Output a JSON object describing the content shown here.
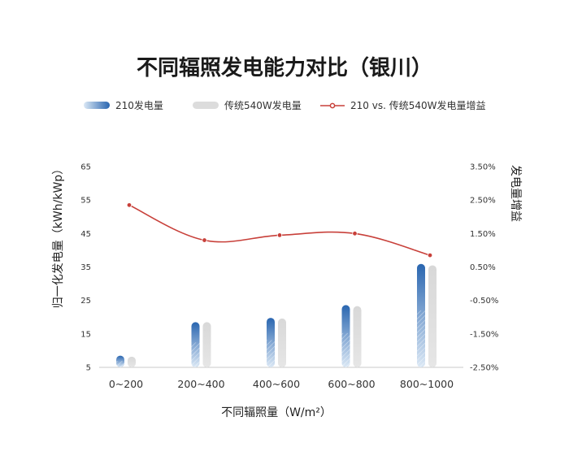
{
  "chart_data": {
    "type": "bar",
    "title": "不同辐照发电能力对比（银川）",
    "categories": [
      "0~200",
      "200~400",
      "400~600",
      "600~800",
      "800~1000"
    ],
    "series": [
      {
        "name": "210发电量",
        "type": "bar",
        "axis": "left",
        "values": [
          8.5,
          18.5,
          19.8,
          23.6,
          35.9
        ],
        "color": "#2f6fb6"
      },
      {
        "name": "传统540W发电量",
        "type": "bar",
        "axis": "left",
        "values": [
          8.2,
          18.5,
          19.6,
          23.3,
          35.5
        ],
        "color": "#dcdcdc"
      },
      {
        "name": "210 vs. 传统540W发电量增益",
        "type": "line",
        "axis": "right",
        "values": [
          2.35,
          1.3,
          1.45,
          1.5,
          0.85
        ],
        "color": "#c8403a"
      }
    ],
    "xlabel": "不同辐照量（W/m²）",
    "ylabel": "归一化发电量（kWh/kWp）",
    "y2label": "发电量增益",
    "ylim": [
      5,
      65
    ],
    "yticks": [
      5,
      15,
      25,
      35,
      45,
      55,
      65
    ],
    "y2lim": [
      -2.5,
      3.5
    ],
    "y2ticks": [
      "-2.50%",
      "-1.50%",
      "-0.50%",
      "0.50%",
      "1.50%",
      "2.50%",
      "3.50%"
    ],
    "legend_position": "top",
    "grid": false
  }
}
